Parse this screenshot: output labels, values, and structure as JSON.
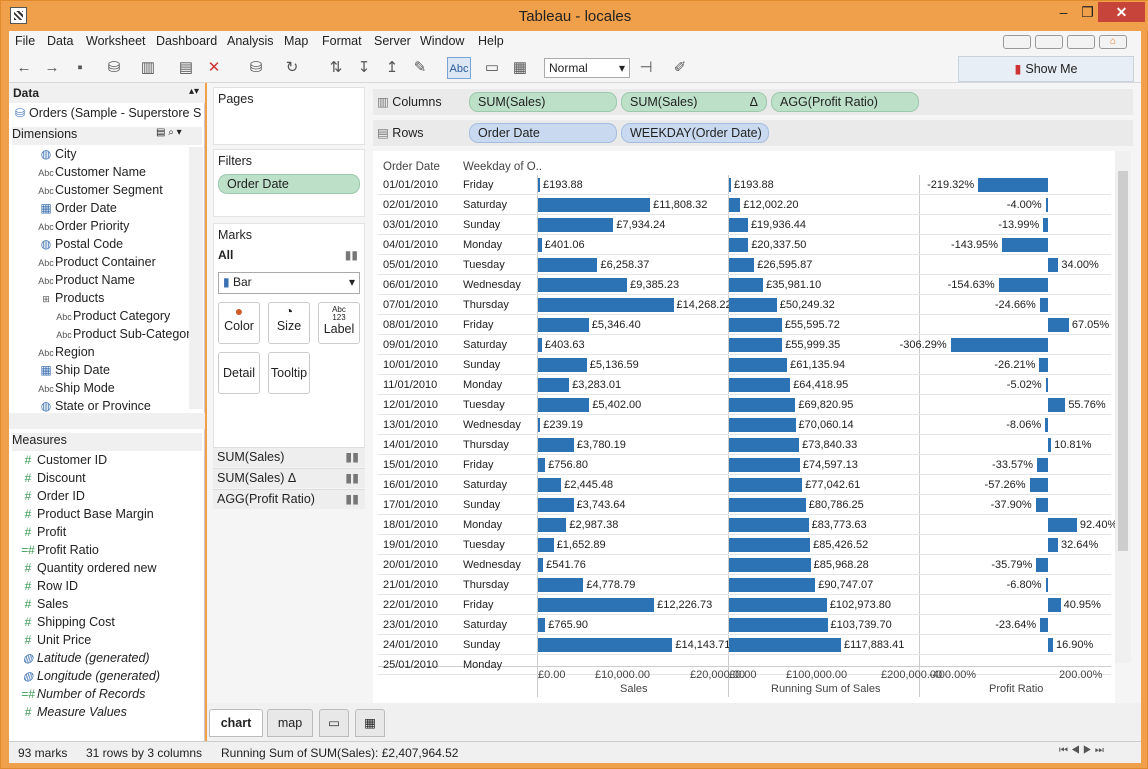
{
  "window": {
    "title": "Tableau - locales"
  },
  "menu": [
    "File",
    "Data",
    "Worksheet",
    "Dashboard",
    "Analysis",
    "Map",
    "Format",
    "Server",
    "Window",
    "Help"
  ],
  "toolbar": {
    "mark_size": "Normal",
    "label_btn": "Abc",
    "show_me": "Show Me"
  },
  "data_pane": {
    "header": "Data",
    "source": "Orders (Sample - Superstore S...",
    "dimensions_label": "Dimensions",
    "measures_label": "Measures",
    "dimensions": [
      {
        "icon": "globe",
        "label": "City"
      },
      {
        "icon": "abc",
        "label": "Customer Name"
      },
      {
        "icon": "abc",
        "label": "Customer Segment"
      },
      {
        "icon": "calendar",
        "label": "Order Date"
      },
      {
        "icon": "abc",
        "label": "Order Priority"
      },
      {
        "icon": "globe",
        "label": "Postal Code"
      },
      {
        "icon": "abc",
        "label": "Product Container"
      },
      {
        "icon": "abc",
        "label": "Product Name"
      },
      {
        "icon": "hierarchy",
        "label": "Products"
      },
      {
        "icon": "abc",
        "label": "Product Category",
        "indent": true
      },
      {
        "icon": "abc",
        "label": "Product Sub-Categor",
        "indent": true
      },
      {
        "icon": "abc",
        "label": "Region"
      },
      {
        "icon": "calendar",
        "label": "Ship Date"
      },
      {
        "icon": "abc",
        "label": "Ship Mode"
      },
      {
        "icon": "globe",
        "label": "State or Province"
      }
    ],
    "measures": [
      {
        "icon": "#",
        "label": "Customer ID"
      },
      {
        "icon": "#",
        "label": "Discount"
      },
      {
        "icon": "#",
        "label": "Order ID"
      },
      {
        "icon": "#",
        "label": "Product Base Margin"
      },
      {
        "icon": "#",
        "label": "Profit"
      },
      {
        "icon": "=#",
        "label": "Profit Ratio"
      },
      {
        "icon": "#",
        "label": "Quantity ordered new"
      },
      {
        "icon": "#",
        "label": "Row ID"
      },
      {
        "icon": "#",
        "label": "Sales"
      },
      {
        "icon": "#",
        "label": "Shipping Cost"
      },
      {
        "icon": "#",
        "label": "Unit Price"
      },
      {
        "icon": "globe",
        "label": "Latitude (generated)",
        "italic": true
      },
      {
        "icon": "globe",
        "label": "Longitude (generated)",
        "italic": true
      },
      {
        "icon": "=#",
        "label": "Number of Records",
        "italic": true
      },
      {
        "icon": "#",
        "label": "Measure Values",
        "italic": true
      }
    ]
  },
  "cards": {
    "pages": "Pages",
    "filters": "Filters",
    "filter_pill": "Order Date",
    "marks": "Marks",
    "marks_all": "All",
    "mark_type": "Bar",
    "buttons": [
      "Color",
      "Size",
      "Label",
      "Detail",
      "Tooltip"
    ],
    "size_glyph": "◔",
    "label_glyph": "Abc\n123",
    "mark_rows": [
      "SUM(Sales)",
      "SUM(Sales) Δ",
      "AGG(Profit Ratio)"
    ]
  },
  "shelves": {
    "columns_label": "Columns",
    "rows_label": "Rows",
    "columns": [
      "SUM(Sales)",
      "SUM(Sales)",
      "AGG(Profit Ratio)"
    ],
    "columns_delta": "Δ",
    "rows": [
      "Order Date",
      "WEEKDAY(Order Date)"
    ]
  },
  "viz": {
    "hdr_date": "Order Date",
    "hdr_weekday": "Weekday of O..",
    "rows": [
      {
        "d": "01/01/2010",
        "w": "Friday",
        "s": "£193.88",
        "rs": "£193.88",
        "pr": "-219.32%",
        "sv": 193.88,
        "rv": 193.88,
        "pv": -219.32
      },
      {
        "d": "02/01/2010",
        "w": "Saturday",
        "s": "£11,808.32",
        "rs": "£12,002.20",
        "pr": "-4.00%",
        "sv": 11808.32,
        "rv": 12002.2,
        "pv": -4.0
      },
      {
        "d": "03/01/2010",
        "w": "Sunday",
        "s": "£7,934.24",
        "rs": "£19,936.44",
        "pr": "-13.99%",
        "sv": 7934.24,
        "rv": 19936.44,
        "pv": -13.99
      },
      {
        "d": "04/01/2010",
        "w": "Monday",
        "s": "£401.06",
        "rs": "£20,337.50",
        "pr": "-143.95%",
        "sv": 401.06,
        "rv": 20337.5,
        "pv": -143.95
      },
      {
        "d": "05/01/2010",
        "w": "Tuesday",
        "s": "£6,258.37",
        "rs": "£26,595.87",
        "pr": "34.00%",
        "sv": 6258.37,
        "rv": 26595.87,
        "pv": 34.0
      },
      {
        "d": "06/01/2010",
        "w": "Wednesday",
        "s": "£9,385.23",
        "rs": "£35,981.10",
        "pr": "-154.63%",
        "sv": 9385.23,
        "rv": 35981.1,
        "pv": -154.63
      },
      {
        "d": "07/01/2010",
        "w": "Thursday",
        "s": "£14,268.22",
        "rs": "£50,249.32",
        "pr": "-24.66%",
        "sv": 14268.22,
        "rv": 50249.32,
        "pv": -24.66
      },
      {
        "d": "08/01/2010",
        "w": "Friday",
        "s": "£5,346.40",
        "rs": "£55,595.72",
        "pr": "67.05%",
        "sv": 5346.4,
        "rv": 55595.72,
        "pv": 67.05
      },
      {
        "d": "09/01/2010",
        "w": "Saturday",
        "s": "£403.63",
        "rs": "£55,999.35",
        "pr": "-306.29%",
        "sv": 403.63,
        "rv": 55999.35,
        "pv": -306.29
      },
      {
        "d": "10/01/2010",
        "w": "Sunday",
        "s": "£5,136.59",
        "rs": "£61,135.94",
        "pr": "-26.21%",
        "sv": 5136.59,
        "rv": 61135.94,
        "pv": -26.21
      },
      {
        "d": "11/01/2010",
        "w": "Monday",
        "s": "£3,283.01",
        "rs": "£64,418.95",
        "pr": "-5.02%",
        "sv": 3283.01,
        "rv": 64418.95,
        "pv": -5.02
      },
      {
        "d": "12/01/2010",
        "w": "Tuesday",
        "s": "£5,402.00",
        "rs": "£69,820.95",
        "pr": "55.76%",
        "sv": 5402.0,
        "rv": 69820.95,
        "pv": 55.76
      },
      {
        "d": "13/01/2010",
        "w": "Wednesday",
        "s": "£239.19",
        "rs": "£70,060.14",
        "pr": "-8.06%",
        "sv": 239.19,
        "rv": 70060.14,
        "pv": -8.06
      },
      {
        "d": "14/01/2010",
        "w": "Thursday",
        "s": "£3,780.19",
        "rs": "£73,840.33",
        "pr": "10.81%",
        "sv": 3780.19,
        "rv": 73840.33,
        "pv": 10.81
      },
      {
        "d": "15/01/2010",
        "w": "Friday",
        "s": "£756.80",
        "rs": "£74,597.13",
        "pr": "-33.57%",
        "sv": 756.8,
        "rv": 74597.13,
        "pv": -33.57
      },
      {
        "d": "16/01/2010",
        "w": "Saturday",
        "s": "£2,445.48",
        "rs": "£77,042.61",
        "pr": "-57.26%",
        "sv": 2445.48,
        "rv": 77042.61,
        "pv": -57.26
      },
      {
        "d": "17/01/2010",
        "w": "Sunday",
        "s": "£3,743.64",
        "rs": "£80,786.25",
        "pr": "-37.90%",
        "sv": 3743.64,
        "rv": 80786.25,
        "pv": -37.9
      },
      {
        "d": "18/01/2010",
        "w": "Monday",
        "s": "£2,987.38",
        "rs": "£83,773.63",
        "pr": "92.40%",
        "sv": 2987.38,
        "rv": 83773.63,
        "pv": 92.4
      },
      {
        "d": "19/01/2010",
        "w": "Tuesday",
        "s": "£1,652.89",
        "rs": "£85,426.52",
        "pr": "32.64%",
        "sv": 1652.89,
        "rv": 85426.52,
        "pv": 32.64
      },
      {
        "d": "20/01/2010",
        "w": "Wednesday",
        "s": "£541.76",
        "rs": "£85,968.28",
        "pr": "-35.79%",
        "sv": 541.76,
        "rv": 85968.28,
        "pv": -35.79
      },
      {
        "d": "21/01/2010",
        "w": "Thursday",
        "s": "£4,778.79",
        "rs": "£90,747.07",
        "pr": "-6.80%",
        "sv": 4778.79,
        "rv": 90747.07,
        "pv": -6.8
      },
      {
        "d": "22/01/2010",
        "w": "Friday",
        "s": "£12,226.73",
        "rs": "£102,973.80",
        "pr": "40.95%",
        "sv": 12226.73,
        "rv": 102973.8,
        "pv": 40.95
      },
      {
        "d": "23/01/2010",
        "w": "Saturday",
        "s": "£765.90",
        "rs": "£103,739.70",
        "pr": "-23.64%",
        "sv": 765.9,
        "rv": 103739.7,
        "pv": -23.64
      },
      {
        "d": "24/01/2010",
        "w": "Sunday",
        "s": "£14,143.71",
        "rs": "£117,883.41",
        "pr": "16.90%",
        "sv": 14143.71,
        "rv": 117883.41,
        "pv": 16.9
      }
    ],
    "axes": {
      "sales_ticks": [
        "£0.00",
        "£10,000.00",
        "£20,000.00"
      ],
      "running_ticks": [
        "£0.00",
        "£100,000.00",
        "£200,000.00"
      ],
      "ratio_ticks": [
        "-400.00%",
        "200.00%"
      ],
      "sales_title": "Sales",
      "running_title": "Running Sum of Sales",
      "ratio_title": "Profit Ratio"
    }
  },
  "bottom_tabs": [
    "chart",
    "map"
  ],
  "status": {
    "marks": "93 marks",
    "rows": "31 rows by 3 columns",
    "sum": "Running Sum of SUM(Sales): £2,407,964.52"
  },
  "colors": {
    "bar": "#2b73b4",
    "titlebar": "#f0a04a"
  }
}
